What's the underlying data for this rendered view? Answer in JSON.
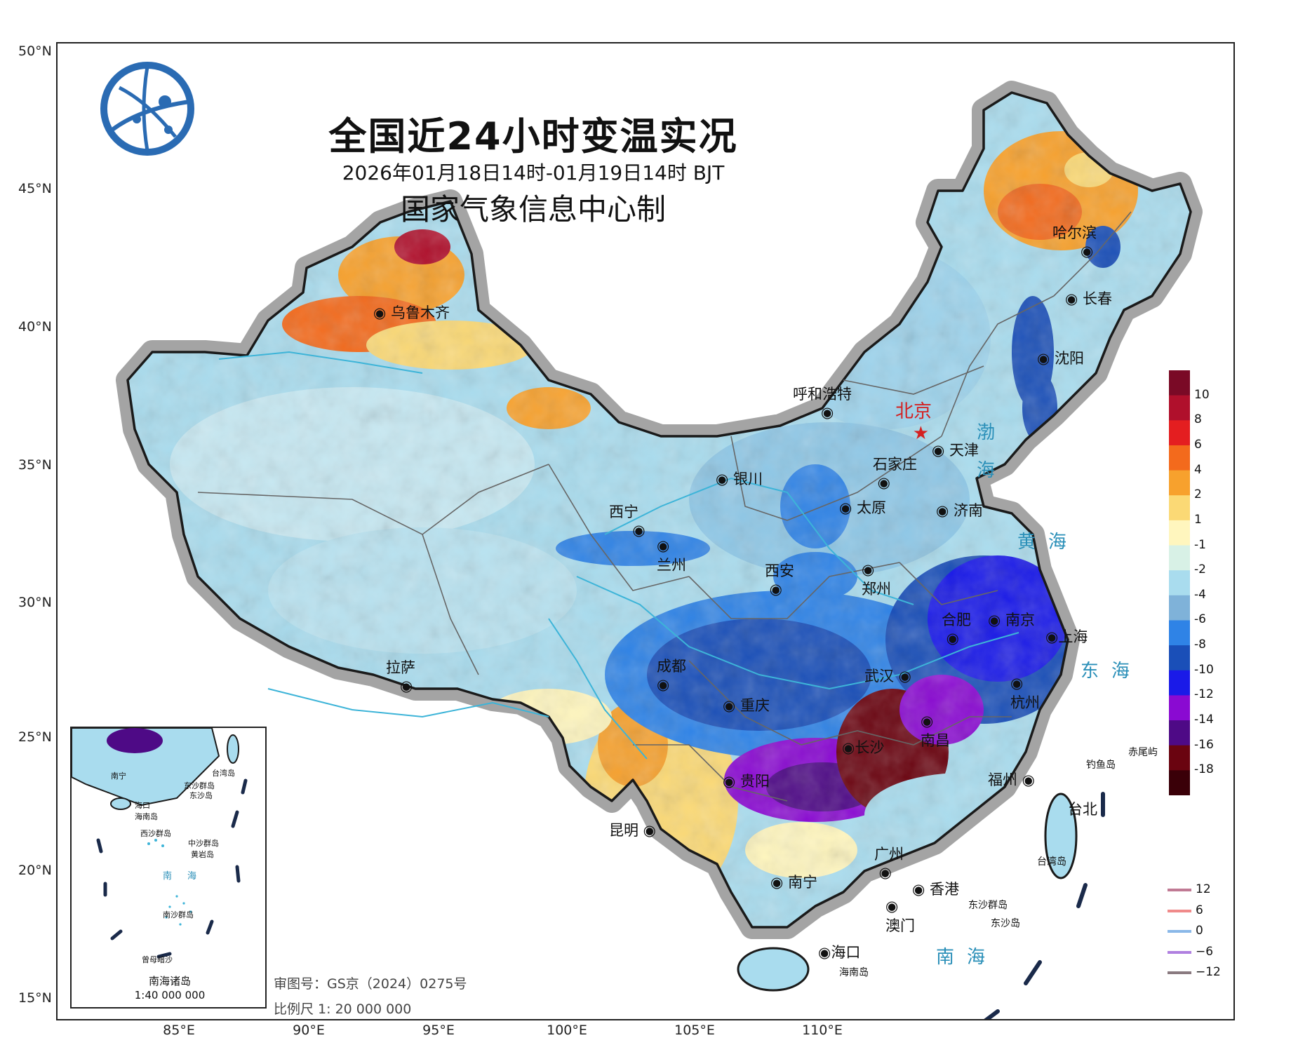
{
  "title": "全国近24小时变温实况",
  "time_range": "2026年01月18日14时-01月19日14时 BJT",
  "producer": "国家气象信息中心制",
  "latitude_labels": [
    "50°N",
    "45°N",
    "40°N",
    "35°N",
    "30°N",
    "25°N",
    "20°N",
    "15°N"
  ],
  "longitude_labels": [
    "85°E",
    "90°E",
    "95°E",
    "100°E",
    "105°E",
    "110°E"
  ],
  "cities": [
    "乌鲁木齐",
    "哈尔滨",
    "长春",
    "沈阳",
    "呼和浩特",
    "北京",
    "天津",
    "银川",
    "石家庄",
    "太原",
    "济南",
    "西宁",
    "兰州",
    "西安",
    "郑州",
    "合肥",
    "南京",
    "上海",
    "拉萨",
    "成都",
    "武汉",
    "杭州",
    "重庆",
    "南昌",
    "长沙",
    "贵阳",
    "福州",
    "台北",
    "昆明",
    "广州",
    "南宁",
    "香港",
    "澳门",
    "海口"
  ],
  "seas": [
    "渤",
    "海",
    "黄海",
    "东海",
    "南海"
  ],
  "islands": [
    "钓鱼岛",
    "赤尾屿",
    "台湾岛",
    "东沙群岛",
    "东沙岛",
    "海南岛"
  ],
  "color_legend": {
    "labels": [
      "10",
      "8",
      "6",
      "4",
      "2",
      "1",
      "-1",
      "-2",
      "-4",
      "-6",
      "-8",
      "-10",
      "-12",
      "-14",
      "-16",
      "-18"
    ],
    "colors": [
      "#7a0a26",
      "#b0102c",
      "#e41e20",
      "#f36a1c",
      "#f7a12d",
      "#fbd975",
      "#fff6be",
      "#d8f1e6",
      "#a9dcee",
      "#7fb2d9",
      "#2f83e6",
      "#1a4fb8",
      "#1a1ae8",
      "#8a0ad2",
      "#4e0a86",
      "#6a0410",
      "#3a0008"
    ]
  },
  "line_legend": [
    {
      "label": "12",
      "color": "#c07a94"
    },
    {
      "label": "6",
      "color": "#f08a8a"
    },
    {
      "label": "0",
      "color": "#8ab8e8"
    },
    {
      "label": "−6",
      "color": "#b080e0"
    },
    {
      "label": "−12",
      "color": "#8a7a80"
    }
  ],
  "footer": {
    "approval": "审图号：GS京（2024）0275号",
    "scale": "比例尺 1: 20 000 000"
  },
  "inset": {
    "title": "南海诸岛",
    "scale": "1:40 000 000",
    "labels": [
      "南宁",
      "台湾岛",
      "东沙群岛",
      "东沙岛",
      "海口",
      "海南岛",
      "西沙群岛",
      "中沙群岛",
      "黄岩岛",
      "南沙群岛",
      "曾母暗沙"
    ],
    "sea": "南海"
  }
}
